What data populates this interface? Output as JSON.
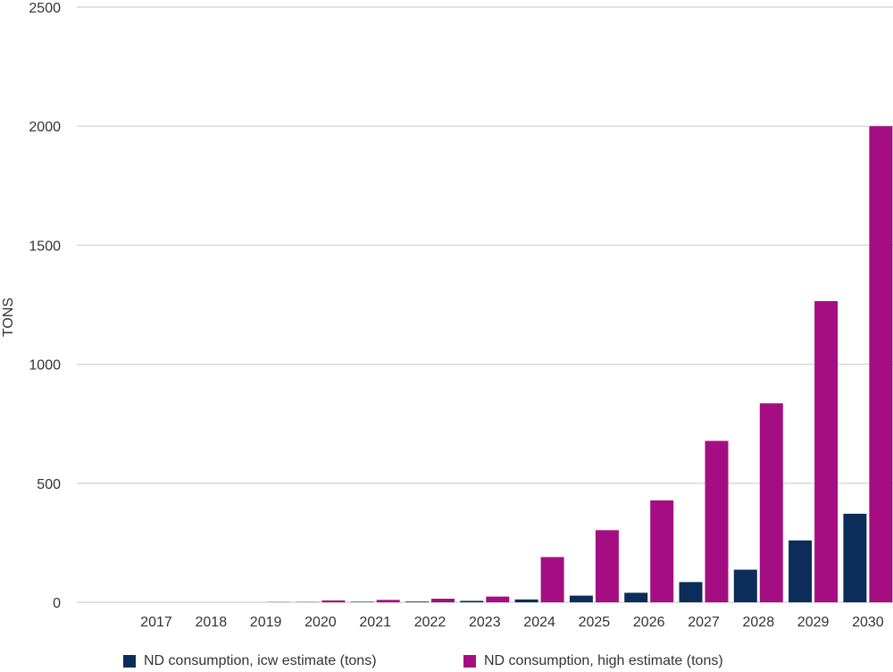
{
  "chart_data": {
    "type": "bar",
    "title": "",
    "xlabel": "",
    "ylabel": "TONS",
    "ylim": [
      0,
      2500
    ],
    "yticks": [
      "0",
      "500",
      "1000",
      "1500",
      "2000",
      "2500"
    ],
    "categories": [
      "2017",
      "2018",
      "2019",
      "2020",
      "2021",
      "2022",
      "2023",
      "2024",
      "2025",
      "2026",
      "2027",
      "2028",
      "2029",
      "2030"
    ],
    "series": [
      {
        "name": "ND consumption, icw estimate (tons)",
        "color": "#0c2d5a",
        "values": [
          0,
          0,
          0,
          1,
          2,
          3,
          6,
          12,
          28,
          40,
          85,
          137,
          260,
          372
        ]
      },
      {
        "name": "ND consumption, high estimate (tons)",
        "color": "#a50e82",
        "values": [
          0,
          0,
          1,
          8,
          10,
          15,
          24,
          190,
          303,
          428,
          678,
          836,
          1265,
          2000
        ]
      }
    ],
    "grid": true,
    "legend_position": "bottom"
  }
}
